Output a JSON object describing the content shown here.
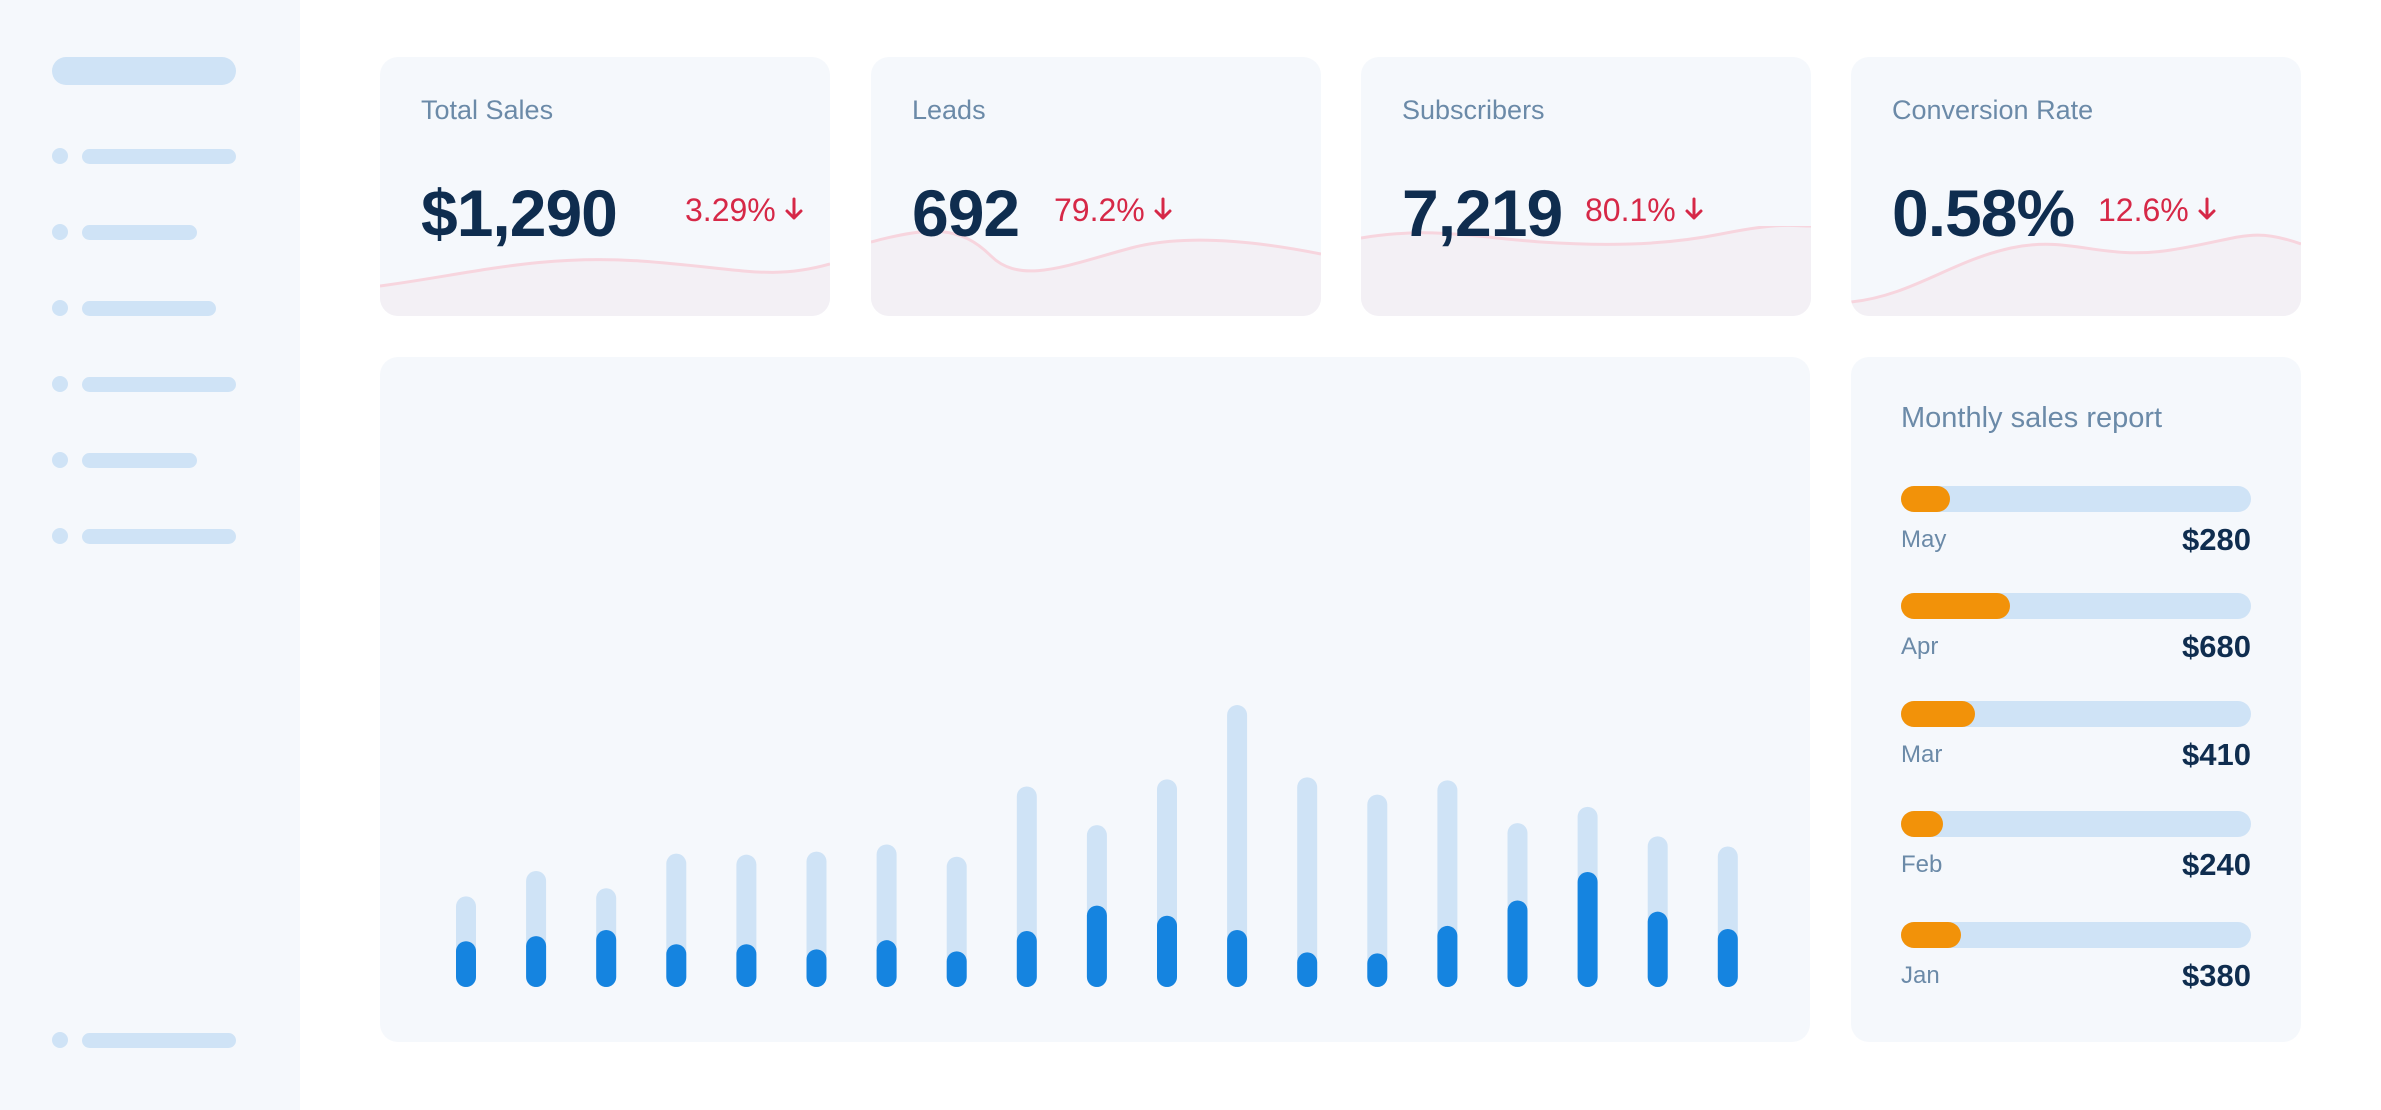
{
  "stats": [
    {
      "title": "Total Sales",
      "value": "$1,290",
      "change": "3.29%",
      "direction": "down"
    },
    {
      "title": "Leads",
      "value": "692",
      "change": "79.2%",
      "direction": "down"
    },
    {
      "title": "Subscribers",
      "value": "7,219",
      "change": "80.1%",
      "direction": "down"
    },
    {
      "title": "Conversion Rate",
      "value": "0.58%",
      "change": "12.6%",
      "direction": "down"
    }
  ],
  "report": {
    "title": "Monthly sales report",
    "rows": [
      {
        "month": "May",
        "amount": "$280",
        "progress": 0.14
      },
      {
        "month": "Apr",
        "amount": "$680",
        "progress": 0.31
      },
      {
        "month": "Mar",
        "amount": "$410",
        "progress": 0.21
      },
      {
        "month": "Feb",
        "amount": "$240",
        "progress": 0.12
      },
      {
        "month": "Jan",
        "amount": "$380",
        "progress": 0.17
      }
    ]
  },
  "colors": {
    "accent_blue": "#1584e0",
    "bar_background": "#cfe3f6",
    "orange": "#f29209",
    "negative_red": "#d62847",
    "text_dark": "#0f2d4f",
    "text_muted": "#6b8aa8"
  },
  "icons": {
    "trend": "arrow-down-icon"
  },
  "chart_data": {
    "type": "bar",
    "series": [
      {
        "values": [
          89,
          114,
          97,
          131,
          130,
          133,
          140,
          128,
          197,
          159,
          204,
          277,
          206,
          189,
          203,
          161,
          177,
          148,
          138
        ]
      },
      {
        "values": [
          45,
          50,
          56,
          42,
          42,
          37,
          46,
          35,
          55,
          80,
          70,
          56,
          34,
          33,
          60,
          85,
          113,
          74,
          57
        ]
      }
    ],
    "ylim": [
      0,
      280
    ],
    "grid": false,
    "legend": "none"
  }
}
